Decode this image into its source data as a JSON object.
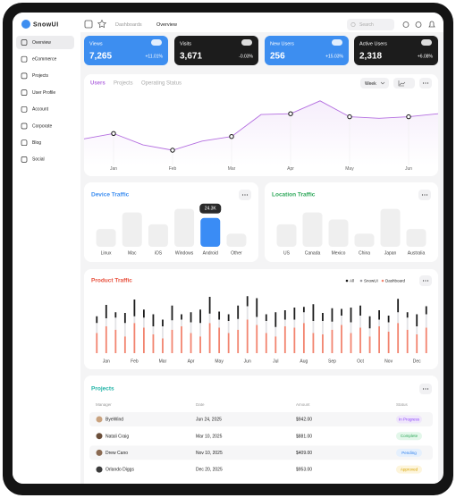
{
  "brand": "SnowUI",
  "sidebar": [
    "Overview",
    "eCommerce",
    "Projects",
    "User Profile",
    "Account",
    "Corporate",
    "Blog",
    "Social"
  ],
  "breadcrumb": [
    "Dashboards",
    "Overview"
  ],
  "search": "Search",
  "stats": [
    {
      "label": "Views",
      "value": "7,265",
      "change": "+11.01%",
      "color": "#3d8ef0"
    },
    {
      "label": "Visits",
      "value": "3,671",
      "change": "-0.03%",
      "color": "#1c1c1c"
    },
    {
      "label": "New Users",
      "value": "256",
      "change": "+15.03%",
      "color": "#3d8ef0"
    },
    {
      "label": "Active Users",
      "value": "2,318",
      "change": "+6.08%",
      "color": "#1c1c1c"
    }
  ],
  "users_chart": {
    "type": "line",
    "tabs": [
      "Users",
      "Projects",
      "Operating Status"
    ],
    "period": "Week",
    "categories": [
      "Jan",
      "Feb",
      "Mar",
      "Apr",
      "May",
      "Jun"
    ],
    "x": [
      -0.5,
      0,
      0.5,
      1,
      1.5,
      2,
      2.5,
      3,
      3.5,
      4,
      4.5,
      5,
      5.5
    ],
    "values": [
      35,
      42,
      27,
      20,
      32,
      38,
      67,
      68,
      85,
      64,
      62,
      64,
      68
    ],
    "color": "#b46fe0",
    "xlim": [
      -0.5,
      5.5
    ],
    "ylim": [
      0,
      100
    ]
  },
  "device_traffic": {
    "type": "bar",
    "title": "Device Traffic",
    "categories": [
      "Linux",
      "Mac",
      "iOS",
      "Windows",
      "Android",
      "Other"
    ],
    "values": [
      15,
      29,
      19,
      32,
      24.3,
      11
    ],
    "value_labels": [
      null,
      null,
      null,
      null,
      "24.3K",
      null
    ],
    "color": "#efefef",
    "highlight_color": "#3a8cf5",
    "ylim": [
      0,
      40
    ]
  },
  "location_traffic": {
    "type": "bar",
    "title": "Location Traffic",
    "categories": [
      "US",
      "Canada",
      "Mexico",
      "China",
      "Japan",
      "Australia"
    ],
    "values": [
      19,
      29,
      23,
      11,
      32,
      15
    ],
    "color": "#efefef",
    "ylim": [
      0,
      40
    ]
  },
  "product_traffic": {
    "type": "stacked-bar",
    "title": "Product Traffic",
    "categories": [
      null,
      "Jan",
      null,
      null,
      "Feb",
      null,
      null,
      "Mar",
      null,
      null,
      "Apr",
      null,
      null,
      "May",
      null,
      null,
      "Jun",
      null,
      null,
      "Jul",
      null,
      null,
      "Aug",
      null,
      null,
      "Sep",
      null,
      null,
      "Oct",
      null,
      null,
      "Nov",
      null,
      null,
      "Dec",
      null
    ],
    "series": [
      {
        "name": "Dashboard",
        "color": "#f2846f",
        "values": [
          30,
          40,
          35,
          25,
          45,
          38,
          28,
          22,
          35,
          40,
          30,
          25,
          45,
          38,
          30,
          35,
          50,
          42,
          30,
          25,
          40,
          38,
          45,
          30,
          28,
          35,
          42,
          30,
          38,
          25,
          40,
          32,
          45,
          35,
          28,
          38
        ]
      },
      {
        "name": "SnowUI",
        "color": "#e3e3e6",
        "values": [
          15,
          12,
          18,
          20,
          10,
          15,
          12,
          18,
          14,
          10,
          16,
          20,
          14,
          12,
          18,
          16,
          20,
          12,
          18,
          14,
          10,
          12,
          16,
          18,
          20,
          12,
          14,
          16,
          18,
          12,
          10,
          14,
          16,
          18,
          12,
          20
        ]
      },
      {
        "name": "All",
        "color": "#1c1c1c",
        "values": [
          10,
          20,
          8,
          15,
          25,
          12,
          18,
          10,
          22,
          8,
          15,
          20,
          25,
          12,
          10,
          20,
          15,
          28,
          10,
          22,
          14,
          18,
          8,
          25,
          12,
          20,
          10,
          22,
          15,
          18,
          14,
          10,
          20,
          8,
          18,
          12
        ]
      }
    ],
    "ylim": [
      0,
      100
    ]
  },
  "projects": {
    "title": "Projects",
    "columns": [
      "Manager",
      "Date",
      "Amount",
      "Status"
    ],
    "rows": [
      [
        "ByeWind",
        "Jun 24, 2025",
        "$942.00",
        "In Progress"
      ],
      [
        "Natali Craig",
        "Mar 10, 2025",
        "$881.00",
        "Complete"
      ],
      [
        "Drew Cano",
        "Nov 10, 2025",
        "$409.00",
        "Pending"
      ],
      [
        "Orlando Diggs",
        "Dec 20, 2025",
        "$953.00",
        "Approved"
      ]
    ]
  }
}
